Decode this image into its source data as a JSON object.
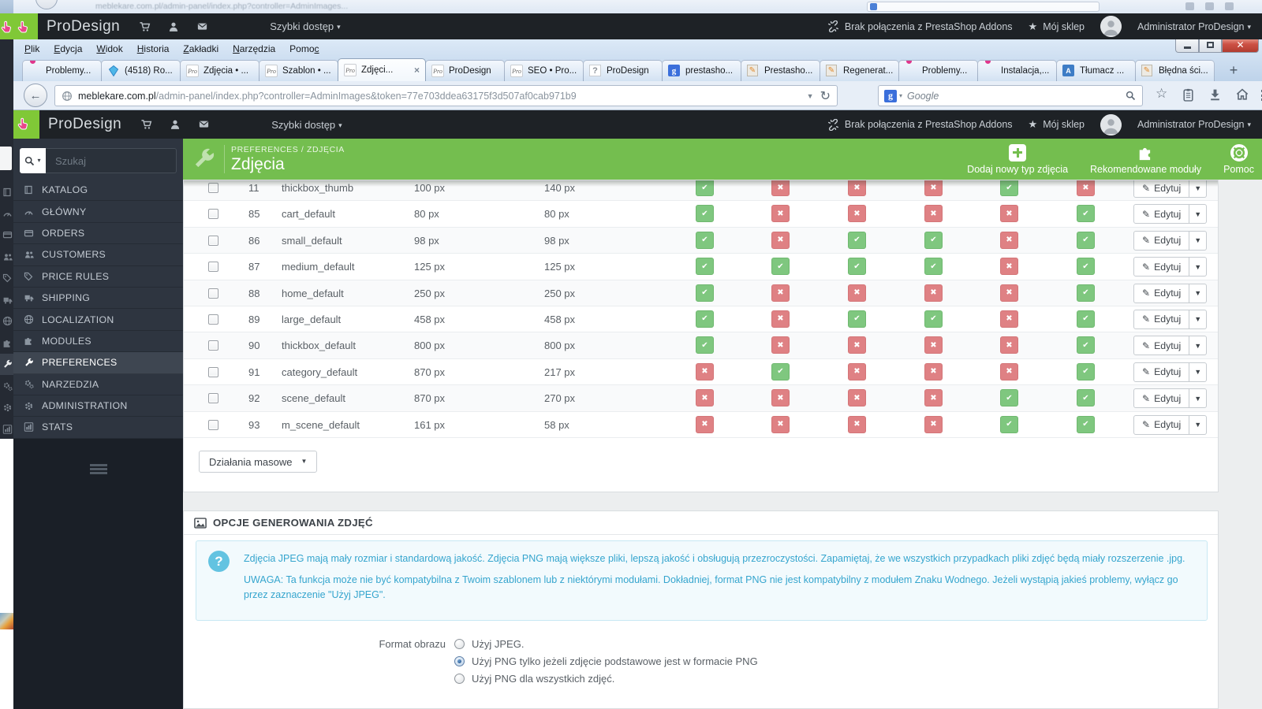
{
  "colors": {
    "header_green": "#74BE4F",
    "brand_green": "#80C837",
    "toggle_yes_green": "#7FC77F",
    "toggle_no_red": "#DF8184",
    "info_blue": "#35A5CE",
    "admin_bar_dark": "#1E2226"
  },
  "background_window": {
    "url_sliver": "meblekare.com.pl/admin-panel/index.php?controller=AdminImages...",
    "sidebar_icons": [
      "book",
      "gauge",
      "card",
      "people",
      "tag",
      "truck",
      "globe",
      "puzzle",
      "wrench",
      "gears",
      "gear",
      "chart"
    ]
  },
  "browser": {
    "menu": [
      {
        "label": "Plik",
        "u": 0
      },
      {
        "label": "Edycja",
        "u": 0
      },
      {
        "label": "Widok",
        "u": 0
      },
      {
        "label": "Historia",
        "u": 0
      },
      {
        "label": "Zakładki",
        "u": 0
      },
      {
        "label": "Narzędzia",
        "u": 0
      },
      {
        "label": "Pomoc",
        "u": 4
      }
    ],
    "tabs": [
      {
        "label": "Problemy...",
        "icon": "forum",
        "active": false
      },
      {
        "label": "(4518) Ro...",
        "icon": "gem",
        "active": false
      },
      {
        "label": "Zdjęcia • ...",
        "icon": "pro",
        "active": false
      },
      {
        "label": "Szablon • ...",
        "icon": "pro",
        "active": false
      },
      {
        "label": "Zdjęci...",
        "icon": "pro",
        "active": true,
        "close": "×"
      },
      {
        "label": "ProDesign",
        "icon": "pro",
        "active": false
      },
      {
        "label": "SEO • Pro...",
        "icon": "pro",
        "active": false
      },
      {
        "label": "ProDesign",
        "icon": "question",
        "active": false
      },
      {
        "label": "prestasho...",
        "icon": "google",
        "active": false
      },
      {
        "label": "Prestasho...",
        "icon": "paper",
        "active": false
      },
      {
        "label": "Regenerat...",
        "icon": "paper",
        "active": false
      },
      {
        "label": "Problemy...",
        "icon": "forum",
        "active": false
      },
      {
        "label": "Instalacja,...",
        "icon": "forum",
        "active": false
      },
      {
        "label": "Tłumacz ...",
        "icon": "translate",
        "active": false
      },
      {
        "label": "Błędna ści...",
        "icon": "paper",
        "active": false
      }
    ],
    "new_tab_label": "+",
    "url_host": "meblekare.com.pl",
    "url_path": "/admin-panel/index.php?controller=AdminImages&token=77e703ddea63175f3d507af0cab971b9",
    "search_engine_letter": "g",
    "search_placeholder": "Google",
    "close_glyph": "x"
  },
  "admin_header": {
    "brand": "ProDesign",
    "quick_access": "Szybki dostęp",
    "addons_status": "Brak połączenia z PrestaShop Addons",
    "my_shop": "Mój sklep",
    "user": "Administrator ProDesign"
  },
  "sidebar": {
    "search_placeholder": "Szukaj",
    "items": [
      {
        "label": "KATALOG",
        "icon": "book",
        "active": false
      },
      {
        "label": "GŁÓWNY",
        "icon": "gauge",
        "active": false
      },
      {
        "label": "ORDERS",
        "icon": "card",
        "active": false
      },
      {
        "label": "CUSTOMERS",
        "icon": "people",
        "active": false
      },
      {
        "label": "PRICE RULES",
        "icon": "tag",
        "active": false
      },
      {
        "label": "SHIPPING",
        "icon": "truck",
        "active": false
      },
      {
        "label": "LOCALIZATION",
        "icon": "globe",
        "active": false
      },
      {
        "label": "MODULES",
        "icon": "puzzle",
        "active": false
      },
      {
        "label": "PREFERENCES",
        "icon": "wrench",
        "active": true
      },
      {
        "label": "NARZEDZIA",
        "icon": "gears",
        "active": false
      },
      {
        "label": "ADMINISTRATION",
        "icon": "gear",
        "active": false
      },
      {
        "label": "STATS",
        "icon": "chart",
        "active": false
      }
    ]
  },
  "page": {
    "breadcrumb_parent": "PREFERENCES",
    "breadcrumb_sep": " / ",
    "breadcrumb_current": "ZDJĘCIA",
    "title": "Zdjęcia",
    "actions": [
      {
        "label": "Dodaj nowy typ zdjęcia",
        "icon": "plus"
      },
      {
        "label": "Rekomendowane moduły",
        "icon": "puzzle"
      },
      {
        "label": "Pomoc",
        "icon": "lifebuoy"
      }
    ]
  },
  "table": {
    "rows": [
      {
        "id": "11",
        "name": "thickbox_thumb",
        "width": "100 px",
        "height": "140 px",
        "flags": [
          "yes",
          "no",
          "no",
          "no",
          "yes",
          "no"
        ]
      },
      {
        "id": "85",
        "name": "cart_default",
        "width": "80 px",
        "height": "80 px",
        "flags": [
          "yes",
          "no",
          "no",
          "no",
          "no",
          "yes"
        ]
      },
      {
        "id": "86",
        "name": "small_default",
        "width": "98 px",
        "height": "98 px",
        "flags": [
          "yes",
          "no",
          "yes",
          "yes",
          "no",
          "yes"
        ]
      },
      {
        "id": "87",
        "name": "medium_default",
        "width": "125 px",
        "height": "125 px",
        "flags": [
          "yes",
          "yes",
          "yes",
          "yes",
          "no",
          "yes"
        ]
      },
      {
        "id": "88",
        "name": "home_default",
        "width": "250 px",
        "height": "250 px",
        "flags": [
          "yes",
          "no",
          "no",
          "no",
          "no",
          "yes"
        ]
      },
      {
        "id": "89",
        "name": "large_default",
        "width": "458 px",
        "height": "458 px",
        "flags": [
          "yes",
          "no",
          "yes",
          "yes",
          "no",
          "yes"
        ]
      },
      {
        "id": "90",
        "name": "thickbox_default",
        "width": "800 px",
        "height": "800 px",
        "flags": [
          "yes",
          "no",
          "no",
          "no",
          "no",
          "yes"
        ]
      },
      {
        "id": "91",
        "name": "category_default",
        "width": "870 px",
        "height": "217 px",
        "flags": [
          "no",
          "yes",
          "no",
          "no",
          "no",
          "yes"
        ]
      },
      {
        "id": "92",
        "name": "scene_default",
        "width": "870 px",
        "height": "270 px",
        "flags": [
          "no",
          "no",
          "no",
          "no",
          "yes",
          "yes"
        ]
      },
      {
        "id": "93",
        "name": "m_scene_default",
        "width": "161 px",
        "height": "58 px",
        "flags": [
          "no",
          "no",
          "no",
          "no",
          "yes",
          "yes"
        ]
      }
    ],
    "yes_glyph": "✔",
    "no_glyph": "✖",
    "edit_label": "Edytuj",
    "bulk_label": "Działania masowe"
  },
  "options": {
    "heading": "OPCJE GENEROWANIA ZDJĘĆ",
    "info_icon_glyph": "?",
    "info_line1": "Zdjęcia JPEG mają mały rozmiar i standardową jakość. Zdjęcia PNG mają większe pliki, lepszą jakość i obsługują przezroczystości. Zapamiętaj, że we wszystkich przypadkach pliki zdjęć będą miały rozszerzenie .jpg.",
    "info_line2": "UWAGA: Ta funkcja może nie być kompatybilna z Twoim szablonem lub z niektórymi modułami. Dokładniej, format PNG nie jest kompatybilny z modułem Znaku Wodnego. Jeżeli wystąpią jakieś problemy, wyłącz go przez zaznaczenie \"Użyj JPEG\".",
    "format_label": "Format obrazu",
    "radios": [
      {
        "label": "Użyj JPEG.",
        "selected": false
      },
      {
        "label": "Użyj PNG tylko jeżeli zdjęcie podstawowe jest w formacie PNG",
        "selected": true
      },
      {
        "label": "Użyj PNG dla wszystkich zdjęć.",
        "selected": false
      }
    ]
  }
}
